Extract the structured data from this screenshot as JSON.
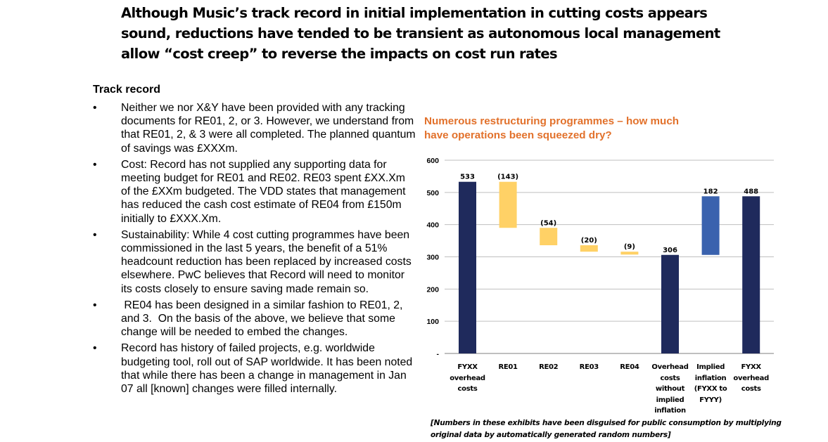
{
  "title": {
    "lines": [
      "Although Music’s track record in initial implementation in cutting costs appears",
      "sound, reductions have tended to be transient as autonomous local management",
      "allow “cost creep” to reverse the impacts on cost run rates"
    ]
  },
  "track_record": {
    "heading": "Track record",
    "bullet_char": "•",
    "bullets": [
      "Neither we nor X&Y have been provided with any tracking documents for RE01, 2, or 3.  However, we understand from that RE01, 2, & 3 were all completed. The planned quantum of savings was £XXXm.",
      "Cost: Record has not supplied any supporting data for meeting budget for RE01 and RE02. RE03 spent £XX.Xm of the £XXm budgeted. The VDD states that management has reduced the cash cost estimate of RE04 from £150m initially to £XXX.Xm.",
      "Sustainability: While 4 cost cutting programmes have been commissioned in the last 5 years, the benefit of a 51% headcount reduction has been replaced by increased costs elsewhere.  PwC believes that Record will need to monitor its costs closely to ensure saving made remain so.",
      " RE04 has been designed in a similar fashion to RE01, 2, and 3.  On the basis of the above, we believe that some change will be needed to embed the changes.",
      "Record has history of failed projects,  e.g. worldwide budgeting tool, roll out of SAP worldwide. It has been noted that while there has been a change in management in Jan 07 all [known] changes were filled internally."
    ]
  },
  "chart_data": {
    "type": "bar",
    "subtype": "waterfall",
    "title": "Numerous restructuring programmes – how much have operations been squeezed dry?",
    "xlabel": "",
    "ylabel": "",
    "ylim": [
      0,
      600
    ],
    "yticks": [
      0,
      100,
      200,
      300,
      400,
      500,
      600
    ],
    "ytick_labels": [
      "-",
      "100",
      "200",
      "300",
      "400",
      "500",
      "600"
    ],
    "grid": true,
    "legend": "none",
    "categories": [
      "FYXX overhead costs",
      "RE01",
      "RE02",
      "RE03",
      "RE04",
      "Overhead costs without implied inflation",
      "Implied inflation (FYXX to FYYY)",
      "FYXX overhead costs"
    ],
    "category_label_lines": [
      [
        "FYXX",
        "overhead",
        "costs"
      ],
      [
        "RE01"
      ],
      [
        "RE02"
      ],
      [
        "RE03"
      ],
      [
        "RE04"
      ],
      [
        "Overhead",
        "costs",
        "without",
        "implied",
        "inflation"
      ],
      [
        "Implied",
        "inflation",
        "(FYXX to",
        "FYYY)"
      ],
      [
        "FYXX",
        "overhead",
        "costs"
      ]
    ],
    "values": [
      533,
      -143,
      -54,
      -20,
      -9,
      306,
      182,
      488
    ],
    "bar_kinds": [
      "total",
      "decrease",
      "decrease",
      "decrease",
      "decrease",
      "total",
      "increase",
      "total"
    ],
    "data_labels": [
      "533",
      "(143)",
      "(54)",
      "(20)",
      "(9)",
      "306",
      "182",
      "488"
    ],
    "colors": {
      "total": "#1F2A5C",
      "decrease": "#FFD166",
      "increase": "#3A62AE",
      "grid": "#BFBFBF",
      "axis": "#7F7F7F"
    }
  },
  "footnote": "[Numbers in these exhibits have been disguised for public consumption by multiplying original data by automatically generated random numbers]"
}
